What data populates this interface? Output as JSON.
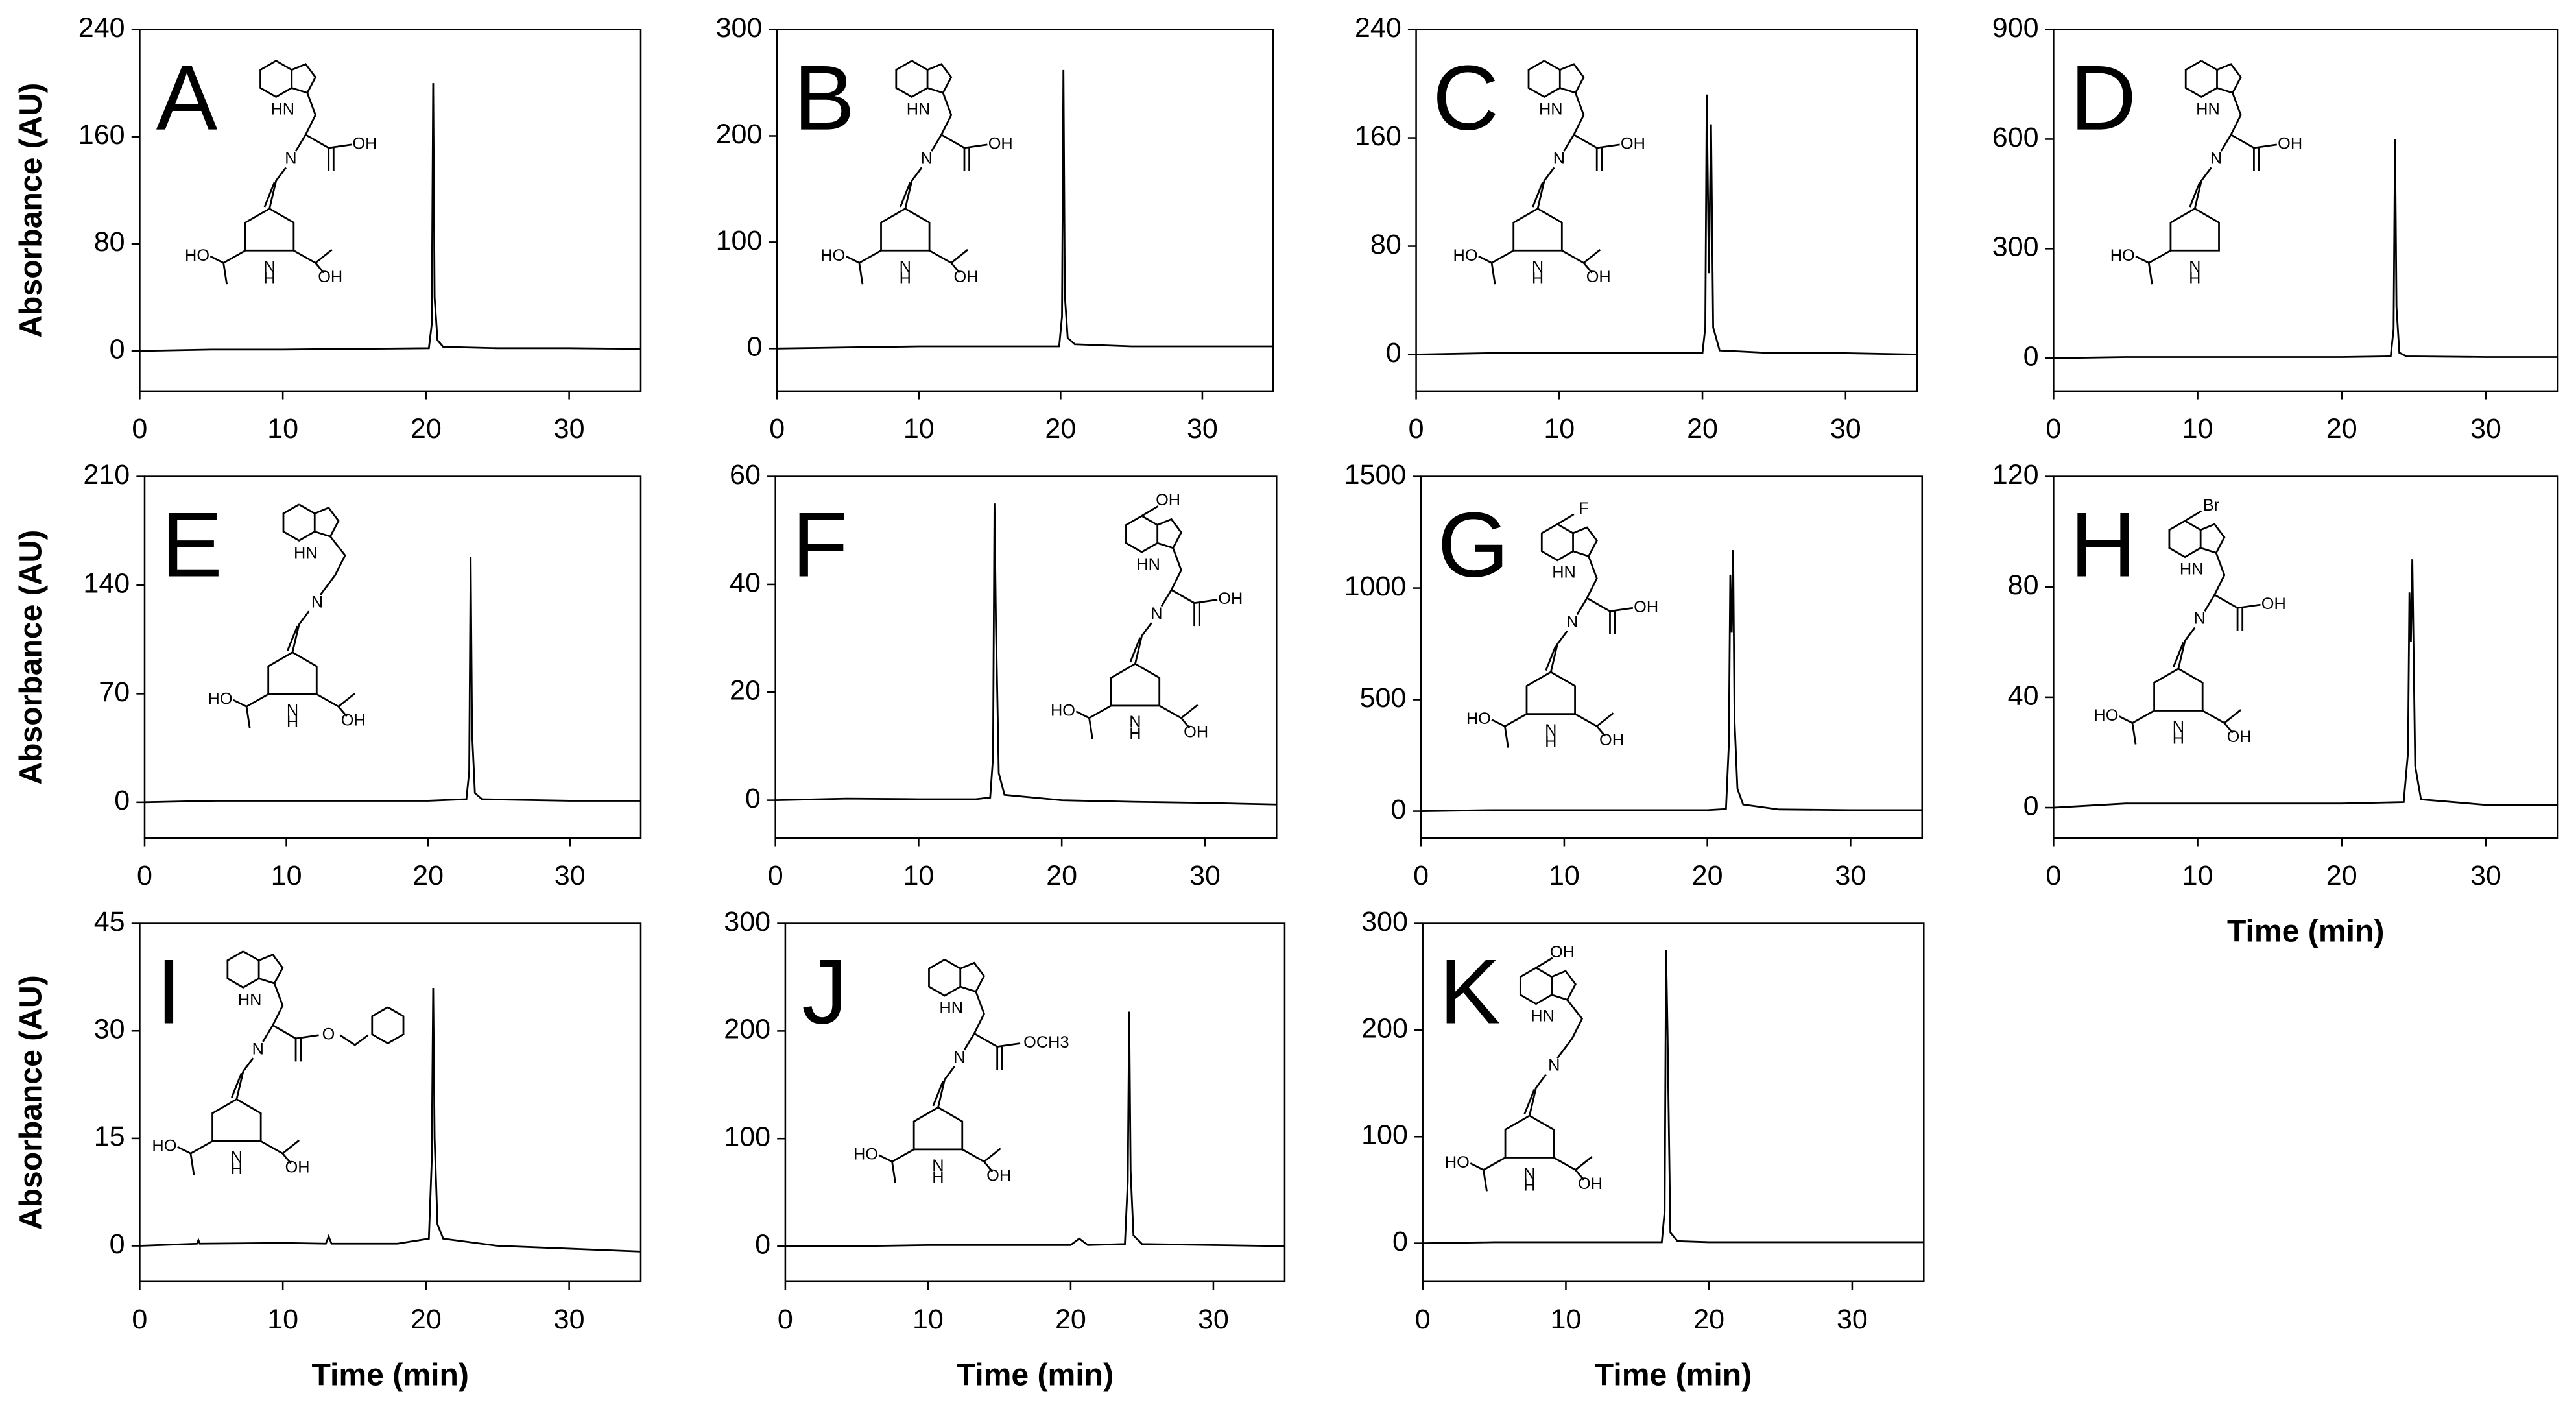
{
  "chart_data": [
    {
      "type": "line",
      "title": "A",
      "y_label": "Absorbance (AU)",
      "xlim": [
        0,
        35
      ],
      "xticks": [
        0,
        10,
        20,
        30
      ],
      "ylim": [
        -30,
        240
      ],
      "yticks": [
        0,
        80,
        160,
        240
      ],
      "color": "#000000",
      "x": [
        0,
        5,
        10,
        15,
        20.2,
        20.4,
        20.5,
        20.6,
        20.8,
        21.2,
        25,
        30,
        35
      ],
      "values": [
        0,
        1,
        1,
        1.5,
        2,
        20,
        200,
        40,
        8,
        3,
        2,
        2,
        1.5
      ],
      "annotations": [
        "HN",
        "N",
        "OH",
        "HO",
        "N",
        "H",
        "OH"
      ]
    },
    {
      "type": "line",
      "title": "B",
      "xlim": [
        0,
        35
      ],
      "xticks": [
        0,
        10,
        20,
        30
      ],
      "ylim": [
        -40,
        300
      ],
      "yticks": [
        0,
        100,
        200,
        300
      ],
      "color": "#000000",
      "x": [
        0,
        5,
        10,
        15,
        19.9,
        20.1,
        20.2,
        20.3,
        20.5,
        21,
        25,
        30,
        35
      ],
      "values": [
        0,
        1,
        2,
        2,
        2,
        30,
        262,
        50,
        10,
        4,
        2,
        2,
        2
      ],
      "annotations": [
        "HN",
        "N",
        "OH",
        "HO",
        "N",
        "H",
        "OH"
      ]
    },
    {
      "type": "line",
      "title": "C",
      "xlim": [
        0,
        35
      ],
      "xticks": [
        0,
        10,
        20,
        30
      ],
      "ylim": [
        -27,
        240
      ],
      "yticks": [
        0,
        80,
        160,
        240
      ],
      "color": "#000000",
      "x": [
        0,
        5,
        10,
        15,
        20,
        20.2,
        20.3,
        20.45,
        20.6,
        20.75,
        21.2,
        25,
        30,
        35
      ],
      "values": [
        0,
        1,
        1,
        1,
        1,
        20,
        192,
        60,
        170,
        20,
        3,
        1,
        1,
        0
      ],
      "annotations": [
        "HN",
        "N",
        "OH",
        "HO",
        "N",
        "H",
        "OH"
      ]
    },
    {
      "type": "line",
      "title": "D",
      "xlim": [
        0,
        35
      ],
      "xticks": [
        0,
        10,
        20,
        30
      ],
      "ylim": [
        -90,
        900
      ],
      "yticks": [
        0,
        300,
        600,
        900
      ],
      "color": "#000000",
      "x": [
        0,
        5,
        10,
        15,
        20,
        23.4,
        23.6,
        23.7,
        23.8,
        24,
        24.5,
        30,
        35
      ],
      "values": [
        0,
        3,
        3,
        3,
        3,
        5,
        80,
        600,
        140,
        15,
        5,
        3,
        3
      ],
      "annotations": [
        "HN",
        "N",
        "OH",
        "HO",
        "N",
        "H"
      ]
    },
    {
      "type": "line",
      "title": "E",
      "y_label": "Absorbance (AU)",
      "xlim": [
        0,
        35
      ],
      "xticks": [
        0,
        10,
        20,
        30
      ],
      "ylim": [
        -23,
        210
      ],
      "yticks": [
        0,
        70,
        140,
        210
      ],
      "color": "#000000",
      "x": [
        0,
        5,
        10,
        15,
        20,
        22.7,
        22.9,
        23,
        23.1,
        23.3,
        23.8,
        30,
        35
      ],
      "values": [
        0,
        1,
        1,
        1,
        1,
        2,
        20,
        158,
        45,
        6,
        2,
        1,
        1
      ],
      "annotations": [
        "HN",
        "N",
        "HO",
        "N",
        "H",
        "OH"
      ]
    },
    {
      "type": "line",
      "title": "F",
      "xlim": [
        0,
        35
      ],
      "xticks": [
        0,
        10,
        20,
        30
      ],
      "ylim": [
        -7,
        60
      ],
      "yticks": [
        0,
        20,
        40,
        60
      ],
      "color": "#000000",
      "x": [
        0,
        5,
        10,
        14,
        15,
        15.2,
        15.3,
        15.4,
        15.6,
        16,
        20,
        25,
        30,
        35
      ],
      "values": [
        0,
        0.3,
        0.2,
        0.2,
        0.5,
        8,
        55,
        33,
        5,
        1,
        0,
        -0.3,
        -0.5,
        -0.8
      ],
      "annotations": [
        "OH",
        "HN",
        "N",
        "OH",
        "HO",
        "N",
        "H",
        "OH"
      ]
    },
    {
      "type": "line",
      "title": "G",
      "xlim": [
        0,
        35
      ],
      "xticks": [
        0,
        10,
        20,
        30
      ],
      "ylim": [
        -120,
        1500
      ],
      "yticks": [
        0,
        500,
        1000,
        1500
      ],
      "color": "#000000",
      "x": [
        0,
        5,
        10,
        15,
        20,
        21.3,
        21.5,
        21.6,
        21.7,
        21.8,
        21.9,
        22.1,
        22.5,
        25,
        30,
        35
      ],
      "values": [
        0,
        5,
        5,
        5,
        5,
        10,
        300,
        1060,
        800,
        1170,
        400,
        100,
        30,
        8,
        5,
        5
      ],
      "annotations": [
        "F",
        "HN",
        "N",
        "OH",
        "HO",
        "N",
        "H",
        "OH"
      ]
    },
    {
      "type": "line",
      "title": "H",
      "x_label": "Time (min)",
      "xlim": [
        0,
        35
      ],
      "xticks": [
        0,
        10,
        20,
        30
      ],
      "ylim": [
        -11,
        120
      ],
      "yticks": [
        0,
        40,
        80,
        120
      ],
      "color": "#000000",
      "x": [
        0,
        5,
        10,
        15,
        20,
        24.3,
        24.6,
        24.7,
        24.8,
        24.9,
        25.1,
        25.5,
        30,
        35
      ],
      "values": [
        0,
        1.5,
        1.5,
        1.5,
        1.5,
        2,
        20,
        78,
        60,
        90,
        15,
        3,
        1,
        1
      ],
      "annotations": [
        "Br",
        "HN",
        "N",
        "OH",
        "HO",
        "N",
        "H",
        "OH"
      ]
    },
    {
      "type": "line",
      "title": "I",
      "y_label": "Absorbance (AU)",
      "x_label": "Time (min)",
      "xlim": [
        0,
        35
      ],
      "xticks": [
        0,
        10,
        20,
        30
      ],
      "ylim": [
        -5,
        45
      ],
      "yticks": [
        0,
        15,
        30,
        45
      ],
      "color": "#000000",
      "x": [
        0,
        4,
        4.1,
        4.2,
        10,
        13,
        13.2,
        13.4,
        18,
        20.2,
        20.4,
        20.5,
        20.6,
        20.8,
        21.2,
        25,
        30,
        35
      ],
      "values": [
        0,
        0.3,
        0.8,
        0.3,
        0.4,
        0.3,
        1.3,
        0.3,
        0.3,
        1,
        12,
        36,
        15,
        3,
        1,
        0,
        -0.4,
        -0.8
      ],
      "annotations": [
        "HN",
        "N",
        "O",
        "HO",
        "N",
        "H",
        "OH"
      ]
    },
    {
      "type": "line",
      "title": "J",
      "x_label": "Time (min)",
      "xlim": [
        0,
        35
      ],
      "xticks": [
        0,
        10,
        20,
        30
      ],
      "ylim": [
        -33,
        300
      ],
      "yticks": [
        0,
        100,
        200,
        300
      ],
      "color": "#000000",
      "x": [
        0,
        5,
        10,
        15,
        20,
        20.6,
        21.2,
        23.8,
        24,
        24.1,
        24.2,
        24.4,
        25,
        30,
        35
      ],
      "values": [
        0,
        0,
        1,
        1,
        1,
        7,
        1,
        2,
        60,
        218,
        70,
        10,
        2,
        1,
        0
      ],
      "annotations": [
        "HN",
        "N",
        "OCH3",
        "HO",
        "N",
        "H",
        "OH"
      ]
    },
    {
      "type": "line",
      "title": "K",
      "x_label": "Time (min)",
      "xlim": [
        0,
        35
      ],
      "xticks": [
        0,
        10,
        20,
        30
      ],
      "ylim": [
        -36,
        300
      ],
      "yticks": [
        0,
        100,
        200,
        300
      ],
      "color": "#000000",
      "x": [
        0,
        5,
        10,
        15,
        16.7,
        16.9,
        17,
        17.1,
        17.3,
        17.8,
        20,
        25,
        30,
        35
      ],
      "values": [
        0,
        1,
        1,
        1,
        1,
        30,
        275,
        200,
        10,
        2,
        1,
        1,
        1,
        1
      ],
      "annotations": [
        "OH",
        "HN",
        "N",
        "HO",
        "N",
        "H",
        "OH"
      ]
    }
  ]
}
